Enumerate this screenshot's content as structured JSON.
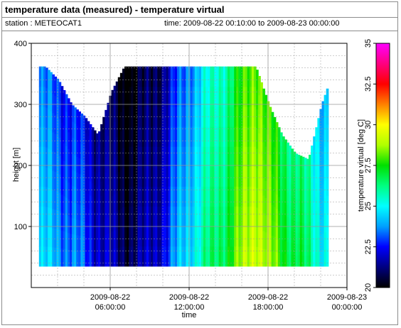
{
  "header": {
    "title": "temperature data (measured) - temperature virtual",
    "station": "station : METEOCAT1",
    "time_range": "time: 2009-08-22 00:10:00 to 2009-08-23 00:00:00"
  },
  "chart_data": {
    "type": "heatmap",
    "title": "temperature data (measured) - temperature virtual",
    "xlabel": "time",
    "ylabel": "height [m]",
    "colorbar_label": "temperature virtual [deg C]",
    "xlim": [
      0,
      24
    ],
    "x_ticks": [
      {
        "value": 6,
        "line1": "2009-08-22",
        "line2": "06:00:00"
      },
      {
        "value": 12,
        "line1": "2009-08-22",
        "line2": "12:00:00"
      },
      {
        "value": 18,
        "line1": "2009-08-22",
        "line2": "18:00:00"
      },
      {
        "value": 24,
        "line1": "2009-08-23",
        "line2": "00:00:00"
      }
    ],
    "ylim": [
      0,
      400
    ],
    "y_ticks": [
      100,
      200,
      300,
      400
    ],
    "colorbar": {
      "min": 20,
      "max": 35,
      "ticks": [
        "20",
        "22.5",
        "25",
        "27.5",
        "30",
        "32.5",
        "35"
      ],
      "colors": [
        "#000000",
        "#000080",
        "#0000ff",
        "#00a0ff",
        "#00ffff",
        "#00ff80",
        "#00e000",
        "#b0ff00",
        "#ffff00",
        "#ff8000",
        "#ff0000",
        "#ff0080",
        "#ff00ff"
      ]
    },
    "height_min": 35,
    "temperature_by_hour": [
      {
        "hour": 0.0,
        "top_height": 362,
        "temp": 24.5
      },
      {
        "hour": 1.0,
        "top_height": 362,
        "temp": 24.3
      },
      {
        "hour": 2.0,
        "top_height": 340,
        "temp": 24.0
      },
      {
        "hour": 3.0,
        "top_height": 300,
        "temp": 23.6
      },
      {
        "hour": 4.0,
        "top_height": 280,
        "temp": 23.0
      },
      {
        "hour": 5.0,
        "top_height": 250,
        "temp": 22.3
      },
      {
        "hour": 6.0,
        "top_height": 320,
        "temp": 21.6
      },
      {
        "hour": 7.0,
        "top_height": 362,
        "temp": 21.0
      },
      {
        "hour": 8.0,
        "top_height": 362,
        "temp": 21.3
      },
      {
        "hour": 9.0,
        "top_height": 362,
        "temp": 21.8
      },
      {
        "hour": 10.0,
        "top_height": 362,
        "temp": 22.6
      },
      {
        "hour": 11.0,
        "top_height": 362,
        "temp": 23.8
      },
      {
        "hour": 12.0,
        "top_height": 362,
        "temp": 25.0
      },
      {
        "hour": 13.0,
        "top_height": 362,
        "temp": 25.8
      },
      {
        "hour": 14.0,
        "top_height": 362,
        "temp": 26.6
      },
      {
        "hour": 15.0,
        "top_height": 362,
        "temp": 27.5
      },
      {
        "hour": 16.0,
        "top_height": 362,
        "temp": 28.6
      },
      {
        "hour": 17.0,
        "top_height": 362,
        "temp": 29.8
      },
      {
        "hour": 18.0,
        "top_height": 300,
        "temp": 28.5
      },
      {
        "hour": 19.0,
        "top_height": 250,
        "temp": 27.6
      },
      {
        "hour": 20.0,
        "top_height": 220,
        "temp": 27.0
      },
      {
        "hour": 21.0,
        "top_height": 210,
        "temp": 26.2
      },
      {
        "hour": 22.0,
        "top_height": 300,
        "temp": 25.3
      },
      {
        "hour": 23.0,
        "top_height": 362,
        "temp": 24.8
      },
      {
        "hour": 24.0,
        "top_height": 362,
        "temp": 24.6
      }
    ]
  }
}
